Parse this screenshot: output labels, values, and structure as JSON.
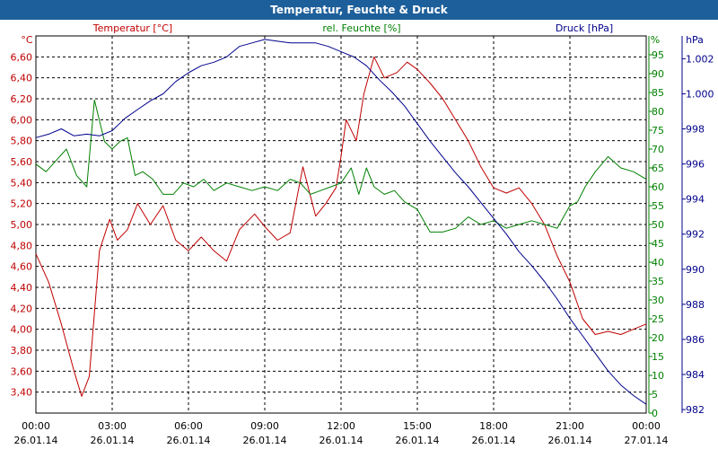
{
  "window": {
    "title": "Temperatur, Feuchte & Druck"
  },
  "colors": {
    "temperature": "#c00000",
    "humidity": "#008000",
    "pressure": "#00008b",
    "grid": "#000000",
    "titlebar": "#1d5f9a"
  },
  "chart_data": {
    "type": "line",
    "title": "Temperatur, Feuchte & Druck",
    "x_range_hours": [
      0,
      24
    ],
    "x_ticks": [
      {
        "time": "00:00",
        "date": "26.01.14"
      },
      {
        "time": "03:00",
        "date": "26.01.14"
      },
      {
        "time": "06:00",
        "date": "26.01.14"
      },
      {
        "time": "09:00",
        "date": "26.01.14"
      },
      {
        "time": "12:00",
        "date": "26.01.14"
      },
      {
        "time": "15:00",
        "date": "26.01.14"
      },
      {
        "time": "18:00",
        "date": "26.01.14"
      },
      {
        "time": "21:00",
        "date": "26.01.14"
      },
      {
        "time": "00:00",
        "date": "27.01.14"
      }
    ],
    "axes": {
      "temperature": {
        "unit": "°C",
        "label": "Temperatur [°C]",
        "range": [
          3.2,
          6.8
        ],
        "ticks": [
          "3,40",
          "3,60",
          "3,80",
          "4,00",
          "4,20",
          "4,40",
          "4,60",
          "4,80",
          "5,00",
          "5,20",
          "5,40",
          "5,60",
          "5,80",
          "6,00",
          "6,20",
          "6,40",
          "6,60"
        ]
      },
      "humidity": {
        "unit": "%",
        "label": "rel. Feuchte [%]",
        "range": [
          0,
          100
        ],
        "ticks": [
          "0",
          "5",
          "10",
          "15",
          "20",
          "25",
          "30",
          "35",
          "40",
          "45",
          "50",
          "55",
          "60",
          "65",
          "70",
          "75",
          "80",
          "85",
          "90",
          "95"
        ]
      },
      "pressure": {
        "unit": "hPa",
        "label": "Druck [hPa]",
        "range": [
          981.8,
          1003.3
        ],
        "ticks": [
          "982",
          "984",
          "986",
          "988",
          "990",
          "992",
          "994",
          "996",
          "998",
          "1.000",
          "1.002"
        ]
      }
    },
    "series": [
      {
        "name": "Temperatur",
        "axis": "temperature",
        "x": [
          0,
          0.5,
          1.0,
          1.5,
          1.8,
          2.1,
          2.5,
          2.9,
          3.2,
          3.6,
          4.0,
          4.5,
          5.0,
          5.5,
          6.0,
          6.5,
          7.0,
          7.5,
          8.0,
          8.6,
          9.0,
          9.5,
          10.0,
          10.5,
          11.0,
          11.4,
          11.8,
          12.0,
          12.2,
          12.6,
          12.9,
          13.3,
          13.7,
          14.2,
          14.6,
          15.0,
          15.5,
          16.0,
          16.5,
          17.0,
          17.5,
          18.0,
          18.5,
          19.0,
          19.5,
          20.0,
          20.5,
          21.0,
          21.5,
          22.0,
          22.5,
          23.0,
          23.5,
          24.0
        ],
        "values": [
          4.72,
          4.45,
          4.05,
          3.6,
          3.36,
          3.55,
          4.75,
          5.05,
          4.85,
          4.95,
          5.2,
          5.0,
          5.18,
          4.85,
          4.75,
          4.88,
          4.75,
          4.65,
          4.95,
          5.1,
          4.98,
          4.85,
          4.92,
          5.55,
          5.08,
          5.2,
          5.35,
          5.65,
          6.0,
          5.8,
          6.25,
          6.6,
          6.4,
          6.45,
          6.55,
          6.48,
          6.35,
          6.2,
          6.0,
          5.8,
          5.55,
          5.35,
          5.3,
          5.35,
          5.2,
          5.0,
          4.7,
          4.45,
          4.1,
          3.95,
          3.98,
          3.95,
          4.0,
          4.05
        ]
      },
      {
        "name": "rel. Feuchte",
        "axis": "humidity",
        "x": [
          0,
          0.4,
          0.8,
          1.2,
          1.6,
          2.0,
          2.3,
          2.7,
          3.0,
          3.3,
          3.6,
          3.9,
          4.2,
          4.6,
          5.0,
          5.4,
          5.8,
          6.2,
          6.6,
          7.0,
          7.5,
          8.0,
          8.5,
          9.0,
          9.5,
          10.0,
          10.4,
          10.8,
          11.2,
          11.6,
          12.0,
          12.4,
          12.7,
          13.0,
          13.3,
          13.7,
          14.1,
          14.5,
          15.0,
          15.5,
          16.0,
          16.5,
          17.0,
          17.5,
          18.0,
          18.5,
          19.0,
          19.5,
          20.0,
          20.5,
          21.0,
          21.3,
          21.6,
          22.0,
          22.5,
          23.0,
          23.5,
          24.0
        ],
        "values": [
          66,
          64,
          67,
          70,
          63,
          60,
          83,
          72,
          70,
          72,
          73,
          63,
          64,
          62,
          58,
          58,
          61,
          60,
          62,
          59,
          61,
          60,
          59,
          60,
          59,
          62,
          61,
          58,
          59,
          60,
          61,
          65,
          58,
          65,
          60,
          58,
          59,
          56,
          54,
          48,
          48,
          49,
          52,
          50,
          51,
          49,
          50,
          51,
          50,
          49,
          55,
          56,
          60,
          64,
          68,
          65,
          64,
          62
        ]
      },
      {
        "name": "Druck",
        "axis": "pressure",
        "x": [
          0,
          0.5,
          1.0,
          1.5,
          2.0,
          2.5,
          3.0,
          3.5,
          4.0,
          4.5,
          5.0,
          5.5,
          6.0,
          6.5,
          7.0,
          7.5,
          8.0,
          8.5,
          9.0,
          9.5,
          10.0,
          10.5,
          11.0,
          11.5,
          12.0,
          12.5,
          13.0,
          13.5,
          14.0,
          14.5,
          15.0,
          15.5,
          16.0,
          16.5,
          17.0,
          17.5,
          18.0,
          18.5,
          19.0,
          19.5,
          20.0,
          20.5,
          21.0,
          21.5,
          22.0,
          22.5,
          23.0,
          23.5,
          24.0
        ],
        "values": [
          997.5,
          997.7,
          998.0,
          997.6,
          997.7,
          997.6,
          997.9,
          998.6,
          999.1,
          999.6,
          1000.0,
          1000.7,
          1001.2,
          1001.6,
          1001.8,
          1002.1,
          1002.7,
          1002.9,
          1003.1,
          1003.0,
          1002.9,
          1002.9,
          1002.9,
          1002.7,
          1002.4,
          1002.1,
          1001.6,
          1000.8,
          1000.1,
          999.3,
          998.3,
          997.3,
          996.4,
          995.5,
          994.7,
          993.8,
          992.9,
          992.0,
          991.0,
          990.2,
          989.3,
          988.3,
          987.2,
          986.2,
          985.2,
          984.2,
          983.4,
          982.8,
          982.3
        ]
      }
    ]
  }
}
